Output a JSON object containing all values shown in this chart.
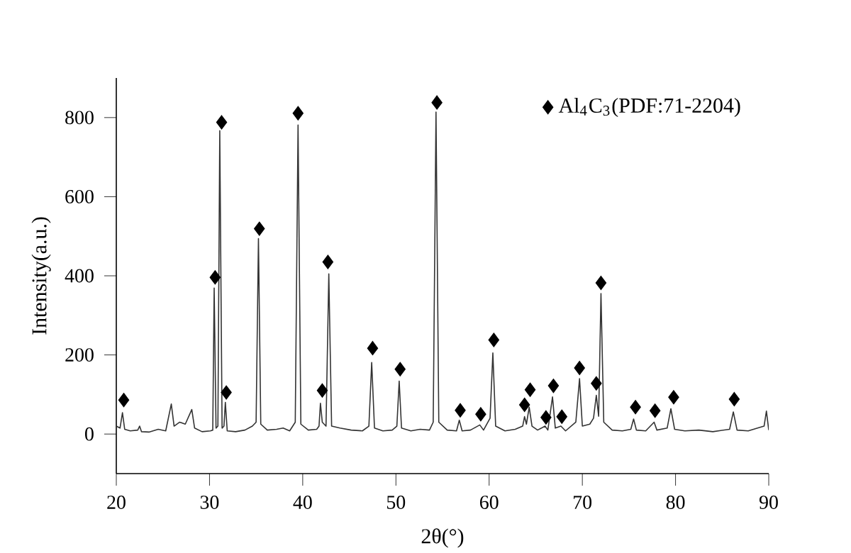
{
  "chart_data": {
    "type": "line",
    "xlabel": "2θ(°)",
    "ylabel": "Intensity(a.u.)",
    "xlim": [
      20,
      90
    ],
    "ylim": [
      -100,
      900
    ],
    "xticks": [
      20,
      30,
      40,
      50,
      60,
      70,
      80,
      90
    ],
    "yticks": [
      0,
      200,
      400,
      600,
      800
    ],
    "grid": false,
    "legend": "top right",
    "marker": "none",
    "line_style": "solid",
    "series": [
      {
        "color": "#333333",
        "x": [
          20.0,
          20.4,
          20.66,
          20.9,
          21.5,
          22.3,
          22.5,
          22.7,
          23.5,
          24.5,
          25.3,
          25.9,
          26.2,
          26.8,
          27.4,
          28.1,
          28.4,
          29.2,
          30.1,
          30.35,
          30.5,
          30.7,
          30.9,
          31.1,
          31.35,
          31.55,
          31.7,
          31.9,
          32.8,
          33.8,
          34.6,
          35.0,
          35.25,
          35.5,
          36.2,
          37.2,
          37.9,
          38.6,
          39.2,
          39.5,
          39.8,
          40.6,
          41.5,
          41.75,
          41.9,
          42.1,
          42.5,
          42.8,
          43.1,
          44.0,
          45.2,
          46.4,
          47.1,
          47.4,
          47.7,
          48.6,
          49.6,
          50.1,
          50.35,
          50.6,
          51.6,
          52.6,
          53.6,
          54.0,
          54.3,
          54.6,
          55.5,
          56.5,
          56.8,
          57.1,
          58.0,
          59.0,
          59.4,
          60.1,
          60.4,
          60.7,
          61.7,
          62.8,
          63.6,
          63.8,
          64.0,
          64.3,
          64.6,
          65.2,
          66.0,
          66.3,
          66.8,
          67.1,
          67.7,
          68.2,
          69.3,
          69.7,
          70.0,
          70.8,
          71.2,
          71.5,
          71.75,
          72.0,
          72.3,
          73.2,
          74.3,
          75.2,
          75.5,
          75.8,
          76.8,
          77.7,
          78.0,
          79.1,
          79.5,
          79.9,
          81.0,
          82.5,
          84.0,
          85.8,
          86.2,
          86.6,
          87.8,
          88.8,
          89.5,
          89.75,
          90.0
        ],
        "values": [
          20,
          15,
          54,
          12,
          8,
          10,
          20,
          6,
          5,
          12,
          8,
          76,
          20,
          30,
          25,
          62,
          15,
          6,
          8,
          10,
          369,
          15,
          20,
          767,
          15,
          20,
          80,
          8,
          6,
          10,
          20,
          30,
          494,
          25,
          10,
          12,
          15,
          8,
          30,
          781,
          25,
          10,
          12,
          20,
          78,
          30,
          20,
          405,
          20,
          15,
          10,
          8,
          20,
          181,
          15,
          8,
          10,
          20,
          134,
          15,
          8,
          12,
          10,
          30,
          814,
          30,
          10,
          8,
          35,
          8,
          10,
          23,
          10,
          40,
          205,
          20,
          8,
          12,
          20,
          44,
          25,
          68,
          20,
          10,
          20,
          10,
          94,
          15,
          20,
          8,
          30,
          140,
          20,
          25,
          40,
          98,
          45,
          355,
          30,
          10,
          8,
          12,
          38,
          10,
          8,
          30,
          10,
          15,
          64,
          12,
          8,
          10,
          6,
          12,
          56,
          10,
          8,
          15,
          20,
          58,
          10
        ]
      },
      {
        "type": "scatter",
        "name": "Al$_{4}$C$_{3}$(PDF:71-2204)",
        "color": "#000000",
        "marker": "diamond",
        "x": [
          20.8,
          30.6,
          31.3,
          31.8,
          35.35,
          39.5,
          42.1,
          42.7,
          47.5,
          50.45,
          54.4,
          56.9,
          59.1,
          60.5,
          63.8,
          64.4,
          66.1,
          66.9,
          67.8,
          69.7,
          71.5,
          72.0,
          75.7,
          77.8,
          79.8,
          86.3
        ],
        "values": [
          86,
          396,
          788,
          105,
          519,
          811,
          110,
          435,
          217,
          164,
          838,
          60,
          50,
          238,
          74,
          112,
          42,
          122,
          44,
          167,
          128,
          382,
          68,
          59,
          93,
          88
        ]
      }
    ]
  }
}
